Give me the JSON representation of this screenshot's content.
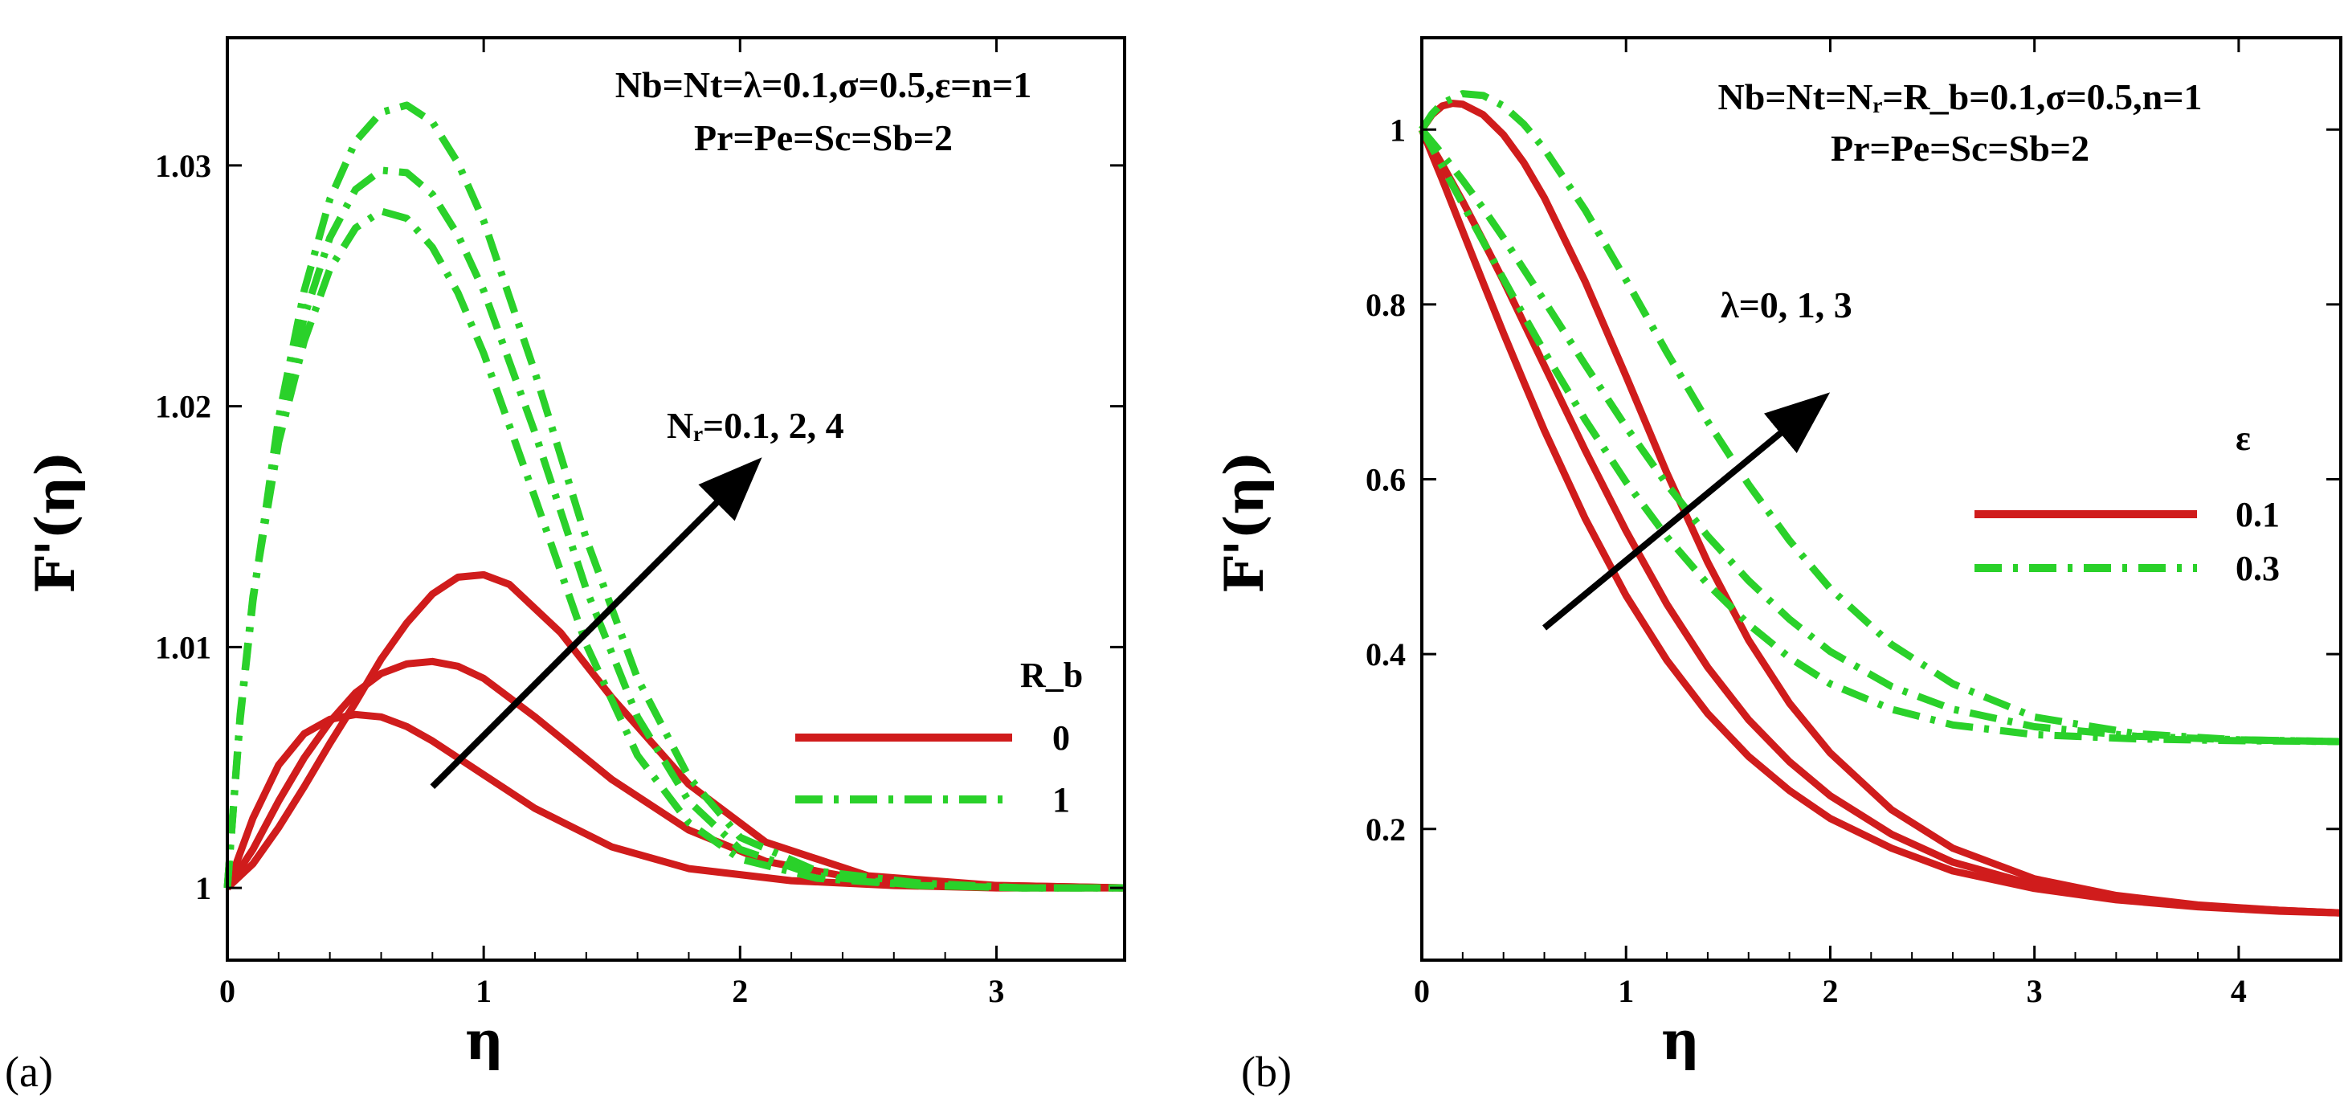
{
  "colors": {
    "red": "#d01c1c",
    "green": "#2ad12a",
    "arrow": "#000000"
  },
  "chart_data": [
    {
      "type": "line",
      "panel_label": "(a)",
      "xlabel": "η",
      "ylabel": "F'(η)",
      "xlim": [
        0,
        3.5
      ],
      "ylim": [
        0.997,
        1.0353
      ],
      "xticks": [
        0,
        1,
        2,
        3
      ],
      "yticks": [
        1,
        1.01,
        1.02,
        1.03
      ],
      "ytick_labels": [
        "1",
        "1.01",
        "1.02",
        "1.03"
      ],
      "annotation_line1": "Nb=Nt=λ=0.1,σ=0.5,ε=n=1",
      "annotation_line2": "Pr=Pe=Sc=Sb=2",
      "arrow_label": "Nᵣ=0.1, 2, 4",
      "arrow_from": [
        0.8,
        1.0042
      ],
      "arrow_to": [
        2.05,
        1.0175
      ],
      "legend_title": "R_b",
      "legend_location": "center-right",
      "legend": [
        {
          "label": "0",
          "style": "solid",
          "color": "red"
        },
        {
          "label": "1",
          "style": "dashdot",
          "color": "green"
        }
      ],
      "series": [
        {
          "name": "Rb=0, Nr=0.1",
          "legend": "0",
          "style": "solid",
          "color": "red",
          "x": [
            0,
            0.1,
            0.2,
            0.3,
            0.4,
            0.5,
            0.6,
            0.7,
            0.8,
            1.0,
            1.2,
            1.5,
            1.8,
            2.2,
            2.6,
            3.0,
            3.5
          ],
          "y": [
            1.0,
            1.0029,
            1.0051,
            1.0064,
            1.007,
            1.0072,
            1.0071,
            1.0067,
            1.0061,
            1.0047,
            1.0033,
            1.0017,
            1.0008,
            1.0003,
            1.0001,
            1.0,
            1.0
          ]
        },
        {
          "name": "Rb=0, Nr=2",
          "legend": "0",
          "style": "solid",
          "color": "red",
          "x": [
            0,
            0.1,
            0.2,
            0.3,
            0.4,
            0.5,
            0.6,
            0.7,
            0.8,
            0.9,
            1.0,
            1.2,
            1.5,
            1.8,
            2.1,
            2.5,
            3.0,
            3.5
          ],
          "y": [
            1.0,
            1.0016,
            1.0036,
            1.0054,
            1.0069,
            1.0081,
            1.0089,
            1.0093,
            1.0094,
            1.0092,
            1.0087,
            1.0071,
            1.0045,
            1.0024,
            1.0011,
            1.0003,
            1.0001,
            1.0
          ]
        },
        {
          "name": "Rb=0, Nr=4",
          "legend": "0",
          "style": "solid",
          "color": "red",
          "x": [
            0,
            0.1,
            0.2,
            0.3,
            0.4,
            0.5,
            0.6,
            0.7,
            0.8,
            0.9,
            1.0,
            1.1,
            1.3,
            1.5,
            1.8,
            2.1,
            2.5,
            3.0,
            3.5
          ],
          "y": [
            1.0,
            1.001,
            1.0025,
            1.0042,
            1.006,
            1.0077,
            1.0095,
            1.011,
            1.0122,
            1.0129,
            1.013,
            1.0126,
            1.0106,
            1.0079,
            1.0043,
            1.0019,
            1.0005,
            1.0001,
            1.0
          ]
        },
        {
          "name": "Rb=1, Nr=0.1",
          "legend": "1",
          "style": "dashdot",
          "color": "green",
          "x": [
            0,
            0.05,
            0.1,
            0.2,
            0.3,
            0.4,
            0.5,
            0.6,
            0.7,
            0.8,
            0.9,
            1.0,
            1.2,
            1.4,
            1.6,
            1.8,
            2.0,
            2.3,
            2.7,
            3.1,
            3.5
          ],
          "y": [
            1.0,
            1.0072,
            1.0121,
            1.0185,
            1.0227,
            1.0257,
            1.0274,
            1.0281,
            1.0278,
            1.0266,
            1.0247,
            1.0222,
            1.0162,
            1.0101,
            1.0055,
            1.0027,
            1.0012,
            1.0004,
            1.0001,
            1.0,
            1.0
          ]
        },
        {
          "name": "Rb=1, Nr=2",
          "legend": "1",
          "style": "dashdot",
          "color": "green",
          "x": [
            0,
            0.05,
            0.1,
            0.2,
            0.3,
            0.4,
            0.5,
            0.6,
            0.7,
            0.8,
            0.9,
            1.0,
            1.2,
            1.4,
            1.6,
            1.8,
            2.0,
            2.3,
            2.7,
            3.1,
            3.5
          ],
          "y": [
            1.0,
            1.0071,
            1.012,
            1.019,
            1.0237,
            1.027,
            1.029,
            1.0298,
            1.0297,
            1.0288,
            1.0271,
            1.0248,
            1.0189,
            1.0124,
            1.0071,
            1.0036,
            1.0016,
            1.0005,
            1.0001,
            1.0,
            1.0
          ]
        },
        {
          "name": "Rb=1, Nr=4",
          "legend": "1",
          "style": "dashdot",
          "color": "green",
          "x": [
            0,
            0.05,
            0.1,
            0.2,
            0.3,
            0.4,
            0.5,
            0.6,
            0.7,
            0.8,
            0.9,
            1.0,
            1.2,
            1.4,
            1.6,
            1.8,
            2.0,
            2.3,
            2.7,
            3.1,
            3.5
          ],
          "y": [
            1.0,
            1.007,
            1.0119,
            1.0195,
            1.0248,
            1.0286,
            1.031,
            1.0322,
            1.0325,
            1.0318,
            1.0301,
            1.0277,
            1.0214,
            1.0145,
            1.0087,
            1.0046,
            1.0021,
            1.0007,
            1.0002,
            1.0,
            1.0
          ]
        }
      ]
    },
    {
      "type": "line",
      "panel_label": "(b)",
      "xlabel": "η",
      "ylabel": "F'(η)",
      "xlim": [
        0,
        4.5
      ],
      "ylim": [
        0.05,
        1.105
      ],
      "xticks": [
        0,
        1,
        2,
        3,
        4
      ],
      "yticks": [
        0.2,
        0.4,
        0.6,
        0.8,
        1
      ],
      "ytick_labels": [
        "0.2",
        "0.4",
        "0.6",
        "0.8",
        "1"
      ],
      "annotation_line1": "Nb=Nt=Nᵣ=R_b=0.1,σ=0.5,n=1",
      "annotation_line2": "Pr=Pe=Sc=Sb=2",
      "arrow_label": "λ=0, 1, 3",
      "arrow_from": [
        0.6,
        0.43
      ],
      "arrow_to": [
        1.95,
        0.69
      ],
      "legend_title": "ε",
      "legend_location": "center-right",
      "legend": [
        {
          "label": "0.1",
          "style": "solid",
          "color": "red"
        },
        {
          "label": "0.3",
          "style": "dashdot",
          "color": "green"
        }
      ],
      "series": [
        {
          "name": "ε=0.1, λ=0",
          "legend": "0.1",
          "style": "solid",
          "color": "red",
          "x": [
            0,
            0.1,
            0.2,
            0.3,
            0.4,
            0.5,
            0.6,
            0.8,
            1.0,
            1.2,
            1.4,
            1.6,
            1.8,
            2.0,
            2.3,
            2.6,
            3.0,
            3.4,
            3.8,
            4.2,
            4.5
          ],
          "y": [
            1.0,
            0.943,
            0.884,
            0.825,
            0.767,
            0.711,
            0.656,
            0.555,
            0.467,
            0.393,
            0.332,
            0.283,
            0.244,
            0.212,
            0.178,
            0.152,
            0.132,
            0.119,
            0.111,
            0.106,
            0.104
          ]
        },
        {
          "name": "ε=0.1, λ=1",
          "legend": "0.1",
          "style": "solid",
          "color": "red",
          "x": [
            0,
            0.1,
            0.2,
            0.3,
            0.4,
            0.6,
            0.8,
            1.0,
            1.2,
            1.4,
            1.6,
            1.8,
            2.0,
            2.3,
            2.6,
            3.0,
            3.4,
            3.8,
            4.2,
            4.5
          ],
          "y": [
            1.0,
            0.96,
            0.918,
            0.873,
            0.827,
            0.73,
            0.633,
            0.541,
            0.457,
            0.385,
            0.325,
            0.277,
            0.238,
            0.194,
            0.162,
            0.136,
            0.121,
            0.112,
            0.107,
            0.104
          ]
        },
        {
          "name": "ε=0.1, λ=3",
          "legend": "0.1",
          "style": "solid",
          "color": "red",
          "x": [
            0,
            0.05,
            0.1,
            0.15,
            0.2,
            0.3,
            0.4,
            0.5,
            0.6,
            0.8,
            1.0,
            1.2,
            1.4,
            1.6,
            1.8,
            2.0,
            2.3,
            2.6,
            3.0,
            3.4,
            3.8,
            4.2,
            4.5
          ],
          "y": [
            1.0,
            1.017,
            1.027,
            1.03,
            1.029,
            1.017,
            0.994,
            0.962,
            0.922,
            0.826,
            0.718,
            0.607,
            0.505,
            0.416,
            0.344,
            0.287,
            0.222,
            0.178,
            0.143,
            0.124,
            0.113,
            0.107,
            0.104
          ]
        },
        {
          "name": "ε=0.3, λ=0",
          "legend": "0.3",
          "style": "dashdot",
          "color": "green",
          "x": [
            0,
            0.1,
            0.2,
            0.3,
            0.4,
            0.5,
            0.6,
            0.8,
            1.0,
            1.2,
            1.4,
            1.6,
            1.8,
            2.0,
            2.3,
            2.6,
            3.0,
            3.5,
            4.0,
            4.5
          ],
          "y": [
            1.0,
            0.958,
            0.915,
            0.872,
            0.829,
            0.787,
            0.746,
            0.668,
            0.597,
            0.534,
            0.48,
            0.434,
            0.396,
            0.366,
            0.337,
            0.319,
            0.308,
            0.303,
            0.301,
            0.3
          ]
        },
        {
          "name": "ε=0.3, λ=1",
          "legend": "0.3",
          "style": "dashdot",
          "color": "green",
          "x": [
            0,
            0.1,
            0.2,
            0.3,
            0.4,
            0.6,
            0.8,
            1.0,
            1.2,
            1.4,
            1.6,
            1.8,
            2.0,
            2.3,
            2.6,
            3.0,
            3.5,
            4.0,
            4.5
          ],
          "y": [
            1.0,
            0.972,
            0.942,
            0.91,
            0.876,
            0.804,
            0.731,
            0.66,
            0.594,
            0.535,
            0.484,
            0.44,
            0.403,
            0.363,
            0.337,
            0.317,
            0.306,
            0.302,
            0.3
          ]
        },
        {
          "name": "ε=0.3, λ=3",
          "legend": "0.3",
          "style": "dashdot",
          "color": "green",
          "x": [
            0,
            0.05,
            0.1,
            0.2,
            0.3,
            0.4,
            0.5,
            0.6,
            0.8,
            1.0,
            1.2,
            1.4,
            1.6,
            1.8,
            2.0,
            2.3,
            2.6,
            3.0,
            3.5,
            4.0,
            4.5
          ],
          "y": [
            1.0,
            1.018,
            1.03,
            1.041,
            1.039,
            1.027,
            1.006,
            0.978,
            0.908,
            0.828,
            0.745,
            0.666,
            0.594,
            0.53,
            0.475,
            0.411,
            0.366,
            0.328,
            0.309,
            0.302,
            0.3
          ]
        }
      ]
    }
  ]
}
